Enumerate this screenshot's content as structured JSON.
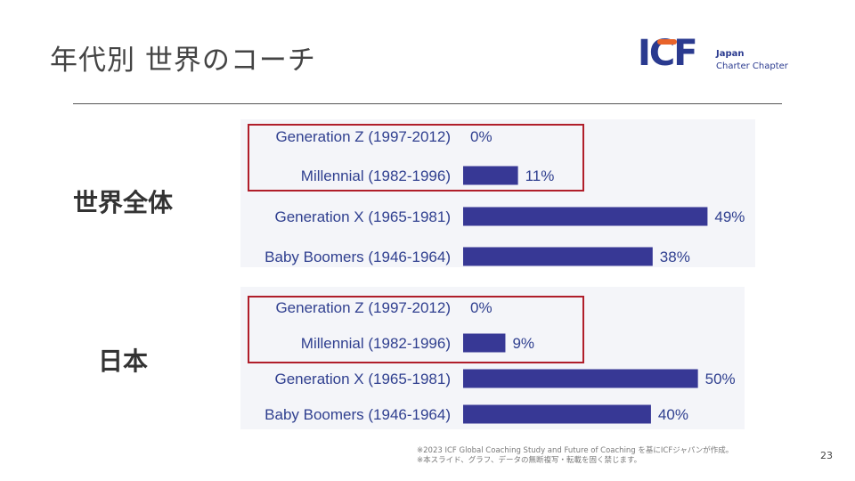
{
  "slide": {
    "title": "年代別 世界のコーチ",
    "page_number": "23",
    "footnote_line1": "※2023 ICF Global Coaching Study and Future of Coaching を基にICFジャパンが作成。",
    "footnote_line2": "※本スライド、グラフ、データの無断複写・転載を固く禁じます。"
  },
  "logo": {
    "mark": "ICF",
    "line1": "Japan",
    "line2": "Charter Chapter",
    "brand_color": "#2a3a8f",
    "accent_color": "#e8632a"
  },
  "sections": {
    "world_label": "世界全体",
    "japan_label": "日本"
  },
  "colors": {
    "bar": "#373895",
    "highlight_box": "#b01e2a",
    "panel_bg": "#f4f5f9"
  },
  "chart_data": [
    {
      "type": "bar",
      "orientation": "horizontal",
      "categories": [
        "Generation Z (1997-2012)",
        "Millennial (1982-1996)",
        "Generation X (1965-1981)",
        "Baby Boomers (1946-1964)"
      ],
      "values": [
        0,
        11,
        49,
        38
      ],
      "value_labels": [
        "0%",
        "11%",
        "49%",
        "38%"
      ],
      "xlim": [
        0,
        55
      ],
      "highlighted_categories": [
        "Generation Z (1997-2012)",
        "Millennial (1982-1996)"
      ]
    },
    {
      "type": "bar",
      "orientation": "horizontal",
      "categories": [
        "Generation Z (1997-2012)",
        "Millennial (1982-1996)",
        "Generation X (1965-1981)",
        "Baby Boomers (1946-1964)"
      ],
      "values": [
        0,
        9,
        50,
        40
      ],
      "value_labels": [
        "0%",
        "9%",
        "50%",
        "40%"
      ],
      "xlim": [
        0,
        55
      ],
      "highlighted_categories": [
        "Generation Z (1997-2012)",
        "Millennial (1982-1996)"
      ]
    }
  ]
}
